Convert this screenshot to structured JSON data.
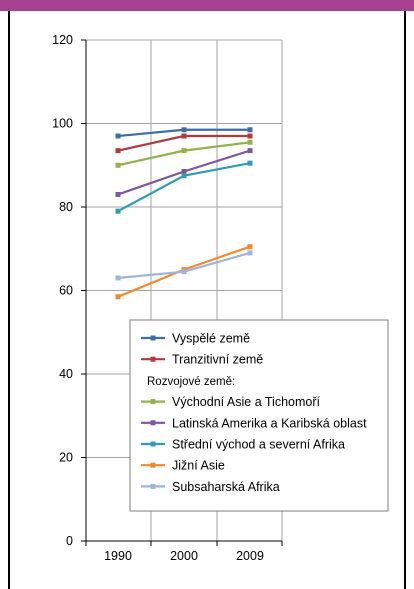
{
  "chart_data": {
    "type": "line",
    "title": "",
    "xlabel": "",
    "ylabel": "",
    "categories": [
      "1990",
      "2000",
      "2009"
    ],
    "ylim": [
      0,
      120
    ],
    "yticks": [
      "0",
      "20",
      "40",
      "60",
      "80",
      "100",
      "120"
    ],
    "grid": true,
    "legend_position": "bottom-right inside plot",
    "legend_group_label": "Rozvojové země:",
    "series": [
      {
        "name": "Vyspělé země",
        "color": "#3b6ea8",
        "values": [
          97,
          98.5,
          98.5
        ],
        "group": "top"
      },
      {
        "name": "Tranzitivní země",
        "color": "#b03a3e",
        "values": [
          93.5,
          97,
          97
        ],
        "group": "top"
      },
      {
        "name": "Východní Asie a Tichomoří",
        "color": "#8db34a",
        "values": [
          90,
          93.5,
          95.5
        ],
        "group": "developing"
      },
      {
        "name": "Latinská Amerika a Karibská oblast",
        "color": "#7a56a3",
        "values": [
          83,
          88.5,
          93.5
        ],
        "group": "developing"
      },
      {
        "name": "Střední východ a severní Afrika",
        "color": "#2f9eb5",
        "values": [
          79,
          87.5,
          90.5
        ],
        "group": "developing"
      },
      {
        "name": "Jižní Asie",
        "color": "#ef8a2e",
        "values": [
          58.5,
          65,
          70.5
        ],
        "group": "developing"
      },
      {
        "name": "Subsaharská Afrika",
        "color": "#9db4dc",
        "values": [
          63,
          64.5,
          69
        ],
        "group": "developing"
      }
    ]
  }
}
